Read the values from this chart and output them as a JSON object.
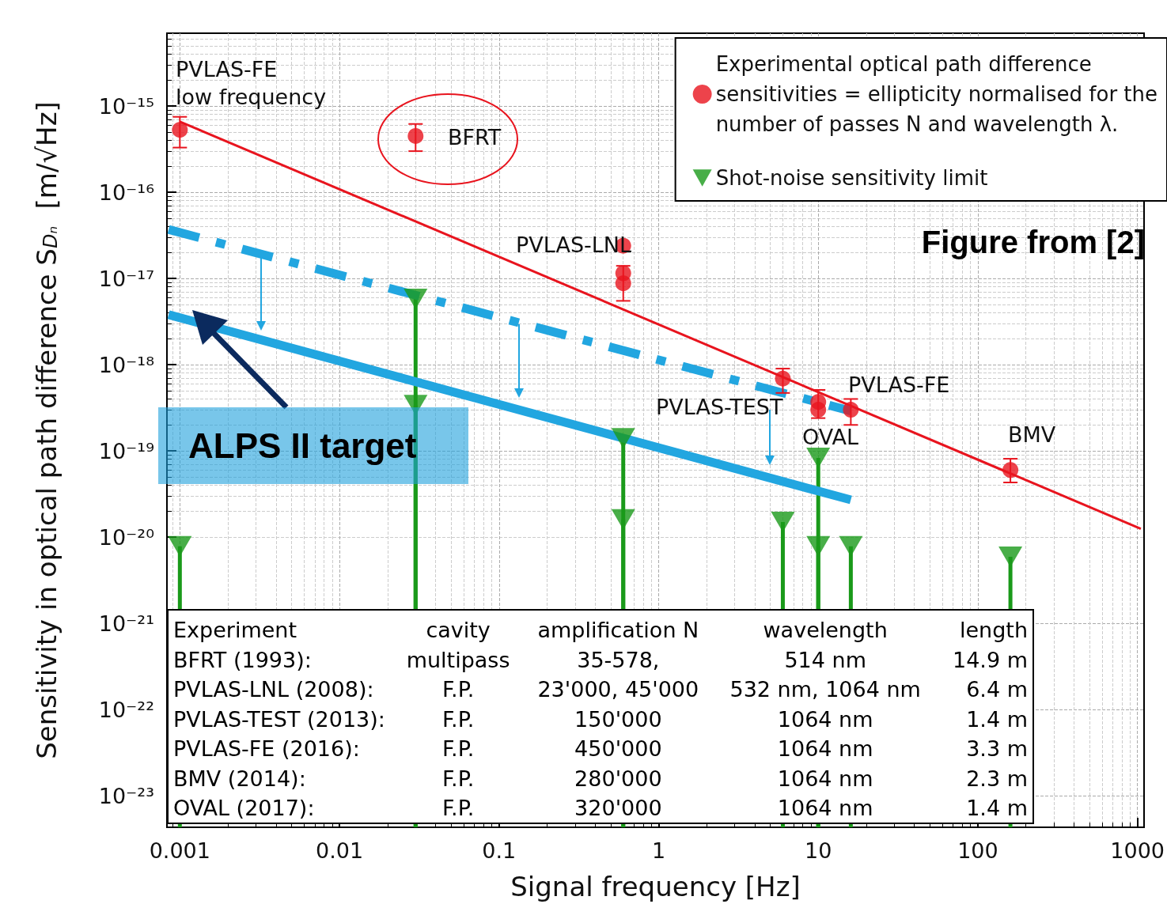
{
  "chart_data": {
    "type": "scatter",
    "xlabel": "Signal frequency [Hz]",
    "ylabel": "Sensitivity in optical path difference S$_{Dₙ}$  [m/√Hz]",
    "log": "xy",
    "grid": true,
    "legend": "top right",
    "xlim": [
      0.00083,
      1100
    ],
    "xticks": [
      0.001,
      0.01,
      0.1,
      1,
      10,
      100,
      1000
    ],
    "ylim": [
      4.3e-24,
      7e-15
    ],
    "yticks": [
      {
        "value": 1e-15,
        "label": "10⁻¹⁵"
      },
      {
        "value": 1e-16,
        "label": "10⁻¹⁶"
      },
      {
        "value": 1e-17,
        "label": "10⁻¹⁷"
      },
      {
        "value": 1e-18,
        "label": "10⁻¹⁸"
      },
      {
        "value": 1e-19,
        "label": "10⁻¹⁹"
      },
      {
        "value": 1e-20,
        "label": "10⁻²⁰"
      },
      {
        "value": 1e-21,
        "label": "10⁻²¹"
      },
      {
        "value": 1e-22,
        "label": "10⁻²²"
      },
      {
        "value": 1e-23,
        "label": "10⁻²³"
      }
    ],
    "series": [
      {
        "name": "Experimental optical path difference\nsensitivities = ellipticity normalised for the\nnumber of passes N and wavelength λ.",
        "marker": "circle",
        "color": "#e8141e",
        "x": [
          0.001,
          0.03,
          0.6,
          0.6,
          0.6,
          6,
          10,
          10,
          16,
          160
        ],
        "values": [
          5.3e-16,
          4.5e-16,
          2.4e-17,
          1.15e-17,
          8.8e-18,
          6.9e-19,
          3.7e-19,
          3e-19,
          3e-19,
          6e-20
        ],
        "errors": [
          [
            3.3e-16,
            7.5e-16
          ],
          [
            3e-16,
            6.2e-16
          ],
          null,
          [
            5.5e-18,
            1.4e-17
          ],
          null,
          [
            4.7e-19,
            9e-19
          ],
          [
            2.4e-19,
            5.1e-19
          ],
          null,
          [
            2e-19,
            4e-19
          ],
          [
            4.3e-20,
            8.1e-20
          ]
        ]
      },
      {
        "name": "Shot-noise sensitivity limit",
        "type": "lollipop",
        "marker": "triangle",
        "color": "#1a9a1a",
        "x": [
          0.001,
          0.03,
          0.03,
          0.6,
          0.6,
          6,
          10,
          10,
          16,
          160
        ],
        "values": [
          7.8e-21,
          5.8e-18,
          3.4e-19,
          1.4e-19,
          1.6e-20,
          1.5e-20,
          8.3e-20,
          7.8e-21,
          7.8e-21,
          5.9e-21
        ]
      },
      {
        "type": "line",
        "color": "#e8141e",
        "line_style": "solid",
        "marker": "none",
        "x": [
          0.001,
          1050
        ],
        "values": [
          6.6e-16,
          1.25e-20
        ]
      },
      {
        "type": "line",
        "color": "#22a6e0",
        "line_style": "dashed",
        "marker": "none",
        "x": [
          0.00085,
          16
        ],
        "values": [
          3.7e-17,
          2.9e-19
        ]
      },
      {
        "type": "line",
        "color": "#22a6e0",
        "line_style": "solid",
        "marker": "none",
        "x": [
          0.00085,
          16
        ],
        "values": [
          3.8e-18,
          2.7e-20
        ]
      }
    ],
    "annotations": [
      "PVLAS-FE\nlow frequency",
      "BFRT",
      "PVLAS-LNL",
      "PVLAS-TEST",
      "PVLAS-FE",
      "OVAL",
      "BMV",
      "Figure from [2]",
      "ALPS II target",
      "Experiment\tcavity\tamplification N\twavelength\tlength",
      "BFRT (1993):\tmultipass\t35-578,\t514 nm\t14.9 m",
      "PVLAS-LNL (2008):\tF.P.\t23'000, 45'000\t532 nm, 1064 nm\t6.4 m",
      "PVLAS-TEST (2013):\tF.P.\t150'000\t1064 nm\t1.4 m",
      "PVLAS-FE (2016):\tF.P.\t450'000\t1064 nm\t3.3 m",
      "BMV (2014):\tF.P.\t280'000\t1064 nm\t2.3 m",
      "OVAL (2017):\tF.P.\t320'000\t1064 nm\t1.4 m"
    ]
  }
}
